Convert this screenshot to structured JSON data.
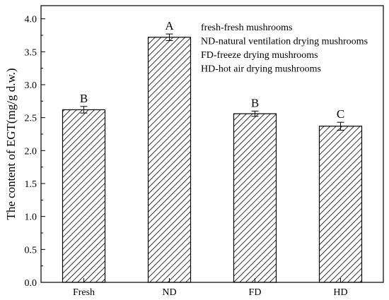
{
  "chart_data": {
    "type": "bar",
    "title": "",
    "xlabel": "",
    "ylabel": "The content of EGT(mg/g d.w.)",
    "ylim": [
      0,
      4.2
    ],
    "yticks": [
      "0.0",
      "0.5",
      "1.0",
      "1.5",
      "2.0",
      "2.5",
      "3.0",
      "3.5",
      "4.0"
    ],
    "categories": [
      "Fresh",
      "ND",
      "FD",
      "HD"
    ],
    "values": [
      2.62,
      3.72,
      2.56,
      2.37
    ],
    "errors": [
      0.05,
      0.05,
      0.04,
      0.06
    ],
    "significance": [
      "B",
      "A",
      "B",
      "C"
    ],
    "bar_fill": "diagonal-hatch",
    "grid": false,
    "legend_position": "top-right",
    "annotations": [
      "fresh-fresh mushrooms",
      "ND-natural ventilation drying mushrooms",
      "FD-freeze drying mushrooms",
      "HD-hot air drying mushrooms"
    ],
    "colors": {
      "ink": "#000000",
      "background": "#ffffff"
    }
  }
}
